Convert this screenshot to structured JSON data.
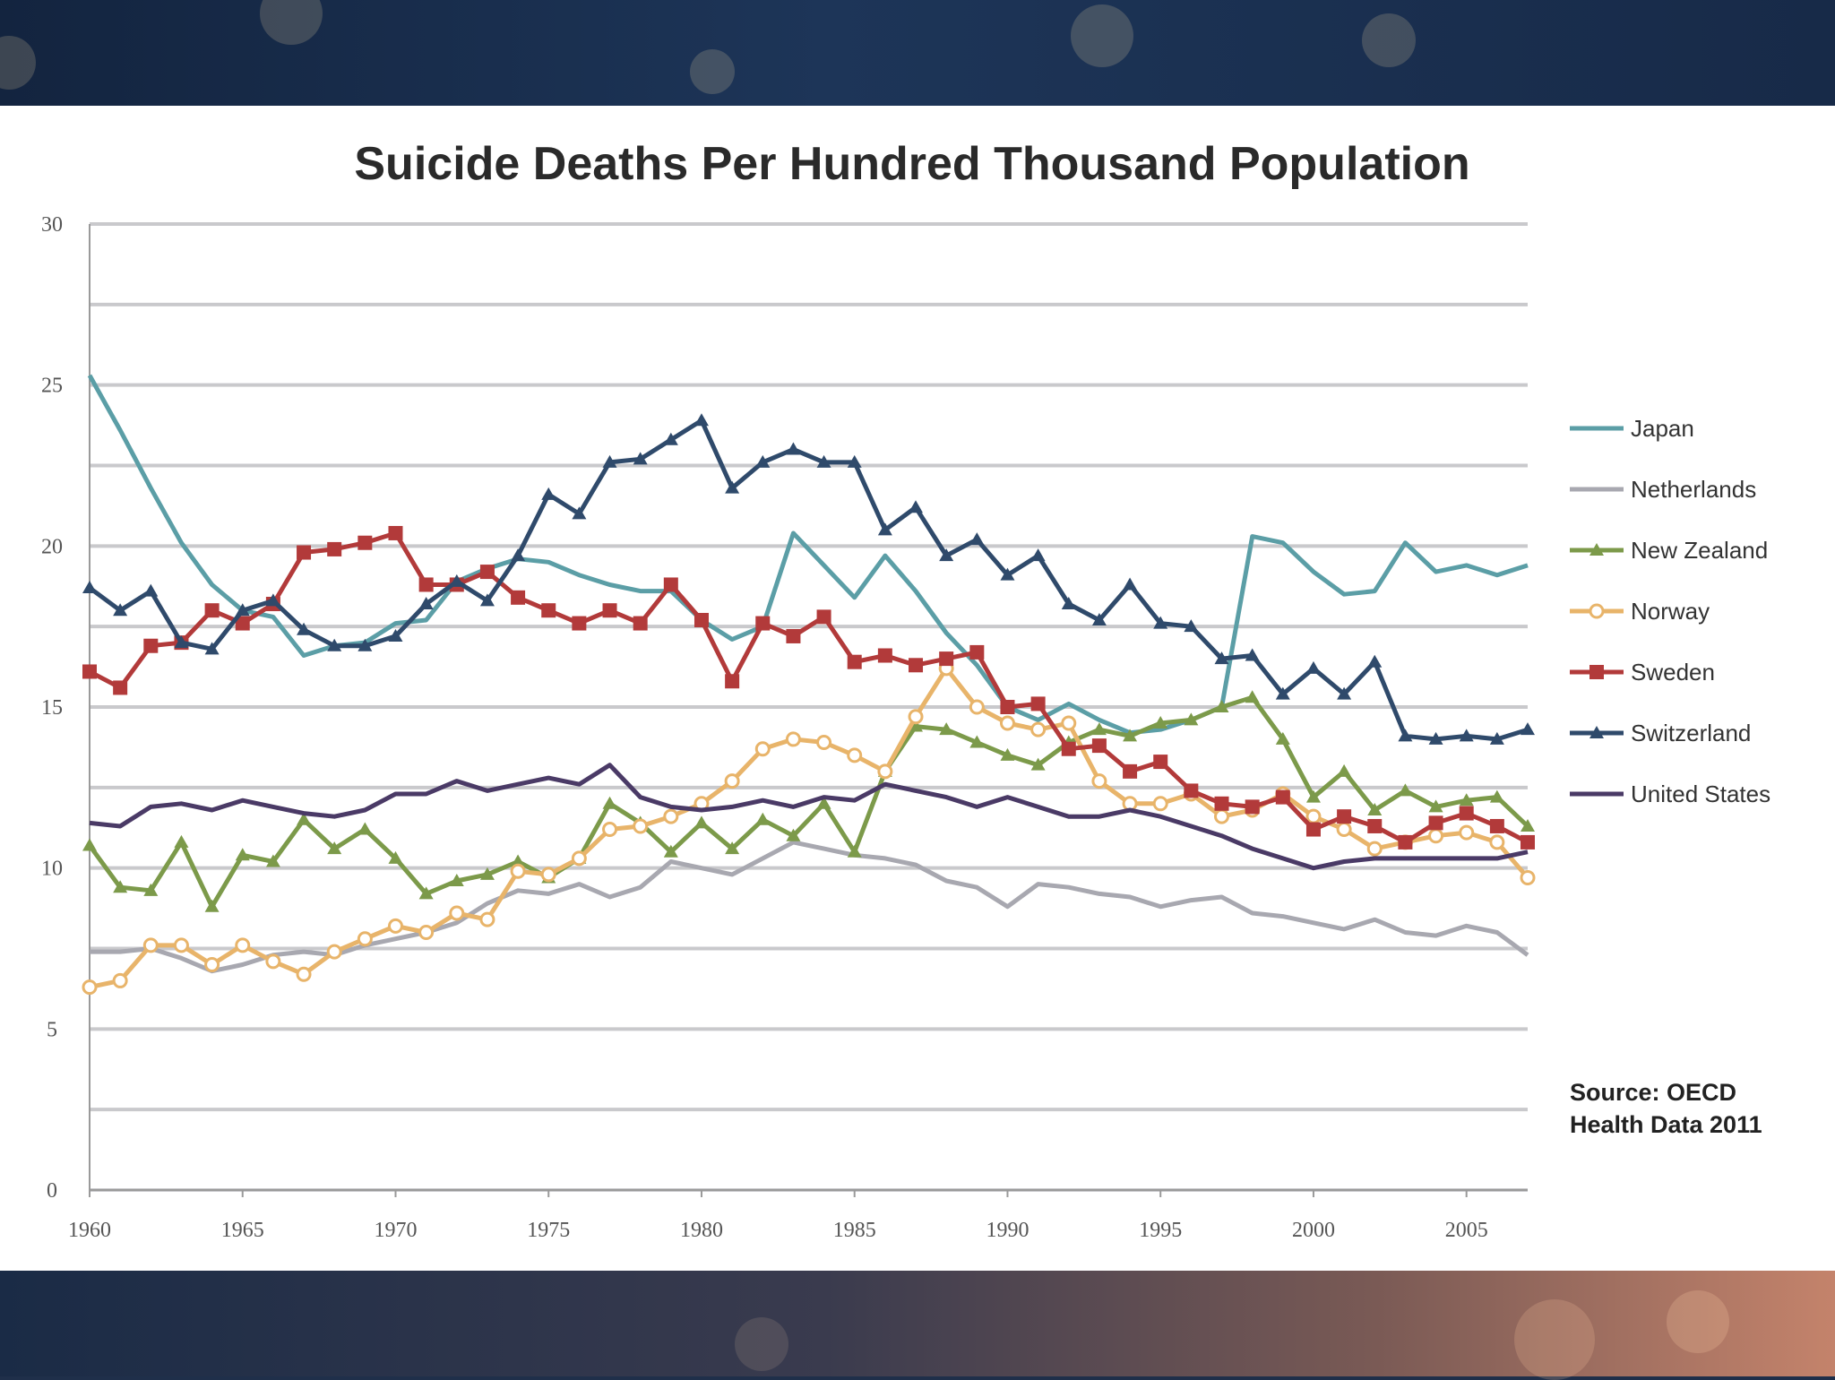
{
  "chart_data": {
    "type": "line",
    "title": "Suicide Deaths Per Hundred Thousand Population",
    "xlabel": "",
    "ylabel": "",
    "xlim": [
      1960,
      2007
    ],
    "ylim": [
      0,
      30
    ],
    "x_ticks": [
      "1960",
      "1965",
      "1970",
      "1975",
      "1980",
      "1985",
      "1990",
      "1995",
      "2000",
      "2005"
    ],
    "y_ticks": [
      "0",
      "5",
      "10",
      "15",
      "20",
      "25",
      "30"
    ],
    "x": [
      1960,
      1961,
      1962,
      1963,
      1964,
      1965,
      1966,
      1967,
      1968,
      1969,
      1970,
      1971,
      1972,
      1973,
      1974,
      1975,
      1976,
      1977,
      1978,
      1979,
      1980,
      1981,
      1982,
      1983,
      1984,
      1985,
      1986,
      1987,
      1988,
      1989,
      1990,
      1991,
      1992,
      1993,
      1994,
      1995,
      1996,
      1997,
      1998,
      1999,
      2000,
      2001,
      2002,
      2003,
      2004,
      2005,
      2006,
      2007
    ],
    "series": [
      {
        "name": "Japan",
        "color": "#5b9ea6",
        "marker": "none",
        "values": [
          25.3,
          23.6,
          21.8,
          20.1,
          18.8,
          18.0,
          17.8,
          16.6,
          16.9,
          17.0,
          17.6,
          17.7,
          18.9,
          19.3,
          19.6,
          19.5,
          19.1,
          18.8,
          18.6,
          18.6,
          17.7,
          17.1,
          17.5,
          20.4,
          19.4,
          18.4,
          19.7,
          18.6,
          17.3,
          16.3,
          15.0,
          14.6,
          15.1,
          14.6,
          14.2,
          14.3,
          14.6,
          15.0,
          20.3,
          20.1,
          19.2,
          18.5,
          18.6,
          20.1,
          19.2,
          19.4,
          19.1,
          19.4
        ]
      },
      {
        "name": "Netherlands",
        "color": "#a8a8b0",
        "marker": "none",
        "values": [
          7.4,
          7.4,
          7.5,
          7.2,
          6.8,
          7.0,
          7.3,
          7.4,
          7.3,
          7.6,
          7.8,
          8.0,
          8.3,
          8.9,
          9.3,
          9.2,
          9.5,
          9.1,
          9.4,
          10.2,
          10.0,
          9.8,
          10.3,
          10.8,
          10.6,
          10.4,
          10.3,
          10.1,
          9.6,
          9.4,
          8.8,
          9.5,
          9.4,
          9.2,
          9.1,
          8.8,
          9.0,
          9.1,
          8.6,
          8.5,
          8.3,
          8.1,
          8.4,
          8.0,
          7.9,
          8.2,
          8.0,
          7.3
        ]
      },
      {
        "name": "New Zealand",
        "color": "#7c9a4a",
        "marker": "tri",
        "values": [
          10.7,
          9.4,
          9.3,
          10.8,
          8.8,
          10.4,
          10.2,
          11.5,
          10.6,
          11.2,
          10.3,
          9.2,
          9.6,
          9.8,
          10.2,
          9.7,
          10.3,
          12.0,
          11.4,
          10.5,
          11.4,
          10.6,
          11.5,
          11.0,
          12.0,
          10.5,
          13.0,
          14.4,
          14.3,
          13.9,
          13.5,
          13.2,
          13.9,
          14.3,
          14.1,
          14.5,
          14.6,
          15.0,
          15.3,
          14.0,
          12.2,
          13.0,
          11.8,
          12.4,
          11.9,
          12.1,
          12.2,
          11.3
        ]
      },
      {
        "name": "Norway",
        "color": "#e8b46a",
        "marker": "circle",
        "values": [
          6.3,
          6.5,
          7.6,
          7.6,
          7.0,
          7.6,
          7.1,
          6.7,
          7.4,
          7.8,
          8.2,
          8.0,
          8.6,
          8.4,
          9.9,
          9.8,
          10.3,
          11.2,
          11.3,
          11.6,
          12.0,
          12.7,
          13.7,
          14.0,
          13.9,
          13.5,
          13.0,
          14.7,
          16.2,
          15.0,
          14.5,
          14.3,
          14.5,
          12.7,
          12.0,
          12.0,
          12.3,
          11.6,
          11.8,
          12.3,
          11.6,
          11.2,
          10.6,
          10.8,
          11.0,
          11.1,
          10.8,
          9.7
        ]
      },
      {
        "name": "Sweden",
        "color": "#b23a3a",
        "marker": "square",
        "values": [
          16.1,
          15.6,
          16.9,
          17.0,
          18.0,
          17.6,
          18.2,
          19.8,
          19.9,
          20.1,
          20.4,
          18.8,
          18.8,
          19.2,
          18.4,
          18.0,
          17.6,
          18.0,
          17.6,
          18.8,
          17.7,
          15.8,
          17.6,
          17.2,
          17.8,
          16.4,
          16.6,
          16.3,
          16.5,
          16.7,
          15.0,
          15.1,
          13.7,
          13.8,
          13.0,
          13.3,
          12.4,
          12.0,
          11.9,
          12.2,
          11.2,
          11.6,
          11.3,
          10.8,
          11.4,
          11.7,
          11.3,
          10.8
        ]
      },
      {
        "name": "Switzerland",
        "color": "#2f4a6b",
        "marker": "tri",
        "values": [
          18.7,
          18.0,
          18.6,
          17.0,
          16.8,
          18.0,
          18.3,
          17.4,
          16.9,
          16.9,
          17.2,
          18.2,
          18.9,
          18.3,
          19.7,
          21.6,
          21.0,
          22.6,
          22.7,
          23.3,
          23.9,
          21.8,
          22.6,
          23.0,
          22.6,
          22.6,
          20.5,
          21.2,
          19.7,
          20.2,
          19.1,
          19.7,
          18.2,
          17.7,
          18.8,
          17.6,
          17.5,
          16.5,
          16.6,
          15.4,
          16.2,
          15.4,
          16.4,
          14.1,
          14.0,
          14.1,
          14.0,
          14.3
        ]
      },
      {
        "name": "United States",
        "color": "#4a3a66",
        "marker": "none",
        "values": [
          11.4,
          11.3,
          11.9,
          12.0,
          11.8,
          12.1,
          11.9,
          11.7,
          11.6,
          11.8,
          12.3,
          12.3,
          12.7,
          12.4,
          12.6,
          12.8,
          12.6,
          13.2,
          12.2,
          11.9,
          11.8,
          11.9,
          12.1,
          11.9,
          12.2,
          12.1,
          12.6,
          12.4,
          12.2,
          11.9,
          12.2,
          11.9,
          11.6,
          11.6,
          11.8,
          11.6,
          11.3,
          11.0,
          10.6,
          10.3,
          10.0,
          10.2,
          10.3,
          10.3,
          10.3,
          10.3,
          10.3,
          10.5
        ]
      }
    ],
    "legend_position": "right",
    "annotation": [
      "Source: OECD",
      "Health Data 2011"
    ],
    "grid": true
  }
}
